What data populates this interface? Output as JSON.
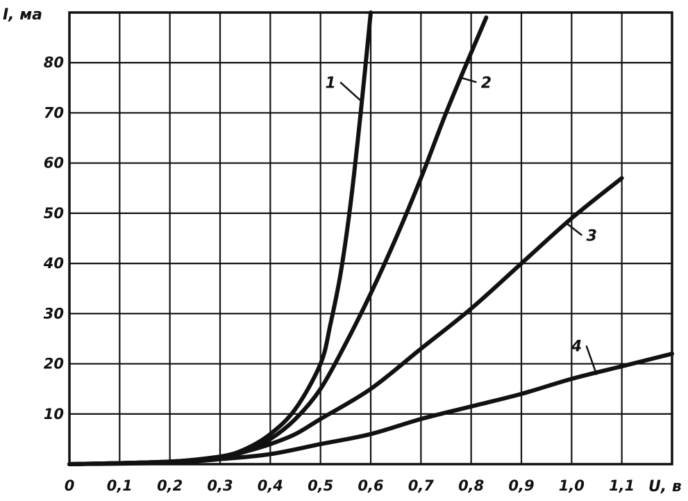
{
  "chart_data": {
    "type": "line",
    "ylabel": "I, ма",
    "xlabel": "U, в",
    "xlim": [
      0,
      1.2
    ],
    "ylim": [
      0,
      90
    ],
    "grid": true,
    "x_tick_labels": [
      "0",
      "0,1",
      "0,2",
      "0,3",
      "0,4",
      "0,5",
      "0,6",
      "0,7",
      "0,8",
      "0,9",
      "1,0",
      "1,1"
    ],
    "y_tick_labels": [
      "10",
      "20",
      "30",
      "40",
      "50",
      "60",
      "70",
      "80"
    ],
    "series": [
      {
        "name": "1",
        "color": "#111111",
        "x": [
          0,
          0.2,
          0.3,
          0.35,
          0.4,
          0.45,
          0.5,
          0.52,
          0.54,
          0.56,
          0.58,
          0.6
        ],
        "y": [
          0,
          0.5,
          1.5,
          3,
          6,
          11,
          20,
          28,
          38,
          52,
          70,
          90
        ]
      },
      {
        "name": "2",
        "color": "#111111",
        "x": [
          0,
          0.2,
          0.3,
          0.35,
          0.4,
          0.45,
          0.5,
          0.55,
          0.6,
          0.65,
          0.7,
          0.75,
          0.8,
          0.83
        ],
        "y": [
          0,
          0.5,
          1.5,
          2.5,
          5,
          9,
          15,
          24,
          34,
          45,
          57,
          70,
          82,
          89
        ]
      },
      {
        "name": "3",
        "color": "#111111",
        "x": [
          0,
          0.2,
          0.3,
          0.35,
          0.4,
          0.45,
          0.5,
          0.6,
          0.7,
          0.8,
          0.9,
          1.0,
          1.1
        ],
        "y": [
          0,
          0.5,
          1.5,
          2.5,
          4,
          6,
          9,
          15,
          23,
          31,
          40,
          49,
          57
        ]
      },
      {
        "name": "4",
        "color": "#111111",
        "x": [
          0,
          0.2,
          0.3,
          0.4,
          0.5,
          0.6,
          0.7,
          0.8,
          0.9,
          1.0,
          1.1,
          1.2
        ],
        "y": [
          0,
          0.3,
          1,
          2,
          4,
          6,
          9,
          11.5,
          14,
          17,
          19.5,
          22
        ]
      }
    ],
    "curve_labels": [
      {
        "text": "1",
        "x": 0.52,
        "y": 75,
        "to_x": 0.585,
        "to_y": 72
      },
      {
        "text": "2",
        "x": 0.83,
        "y": 75,
        "to_x": 0.78,
        "to_y": 77
      },
      {
        "text": "3",
        "x": 1.04,
        "y": 44.5,
        "to_x": 0.99,
        "to_y": 48
      },
      {
        "text": "4",
        "x": 1.01,
        "y": 22.5,
        "to_x": 1.05,
        "to_y": 17.8
      }
    ]
  }
}
